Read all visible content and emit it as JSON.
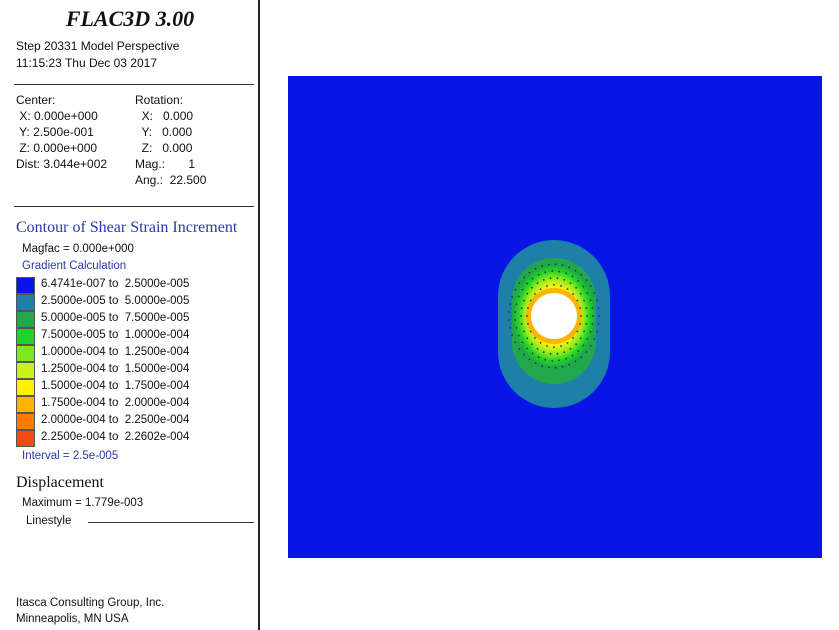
{
  "app": {
    "title": "FLAC3D 3.00"
  },
  "header": {
    "step_line": "Step 20331  Model Perspective",
    "time_line": "11:15:23 Thu Dec 03 2017"
  },
  "view": {
    "center_label": "Center:",
    "center_x": " X: 0.000e+000",
    "center_y": " Y: 2.500e-001",
    "center_z": " Z: 0.000e+000",
    "dist": "Dist: 3.044e+002",
    "rotation_label": "Rotation:",
    "rot_x": "  X:   0.000",
    "rot_y": "  Y:   0.000",
    "rot_z": "  Z:   0.000",
    "mag": "Mag.:       1",
    "ang": "Ang.:  22.500"
  },
  "contour": {
    "title": "Contour of Shear Strain Increment",
    "magfac": "Magfac = 0.000e+000",
    "gradient": "Gradient Calculation",
    "interval": "Interval = 2.5e-005",
    "legend": [
      {
        "range": "6.4741e-007 to  2.5000e-005",
        "color": "#0a14e6"
      },
      {
        "range": "2.5000e-005 to  5.0000e-005",
        "color": "#1e7fa8"
      },
      {
        "range": "5.0000e-005 to  7.5000e-005",
        "color": "#22a84c"
      },
      {
        "range": "7.5000e-005 to  1.0000e-004",
        "color": "#22d22a"
      },
      {
        "range": "1.0000e-004 to  1.2500e-004",
        "color": "#7ee81e"
      },
      {
        "range": "1.2500e-004 to  1.5000e-004",
        "color": "#c8f21a"
      },
      {
        "range": "1.5000e-004 to  1.7500e-004",
        "color": "#fff200"
      },
      {
        "range": "1.7500e-004 to  2.0000e-004",
        "color": "#ffb400"
      },
      {
        "range": "2.0000e-004 to  2.2500e-004",
        "color": "#ff7a00"
      },
      {
        "range": "2.2500e-004 to  2.2602e-004",
        "color": "#f24a14"
      }
    ]
  },
  "displacement": {
    "title": "Displacement",
    "maximum": "Maximum =  1.779e-003",
    "linestyle": "Linestyle"
  },
  "footer": {
    "company": "Itasca Consulting Group, Inc.",
    "city": "Minneapolis, MN  USA"
  },
  "colors": {
    "background_field": "#0a14e6",
    "hole": "#ffffff",
    "accent_text": "#2a3aa8"
  }
}
